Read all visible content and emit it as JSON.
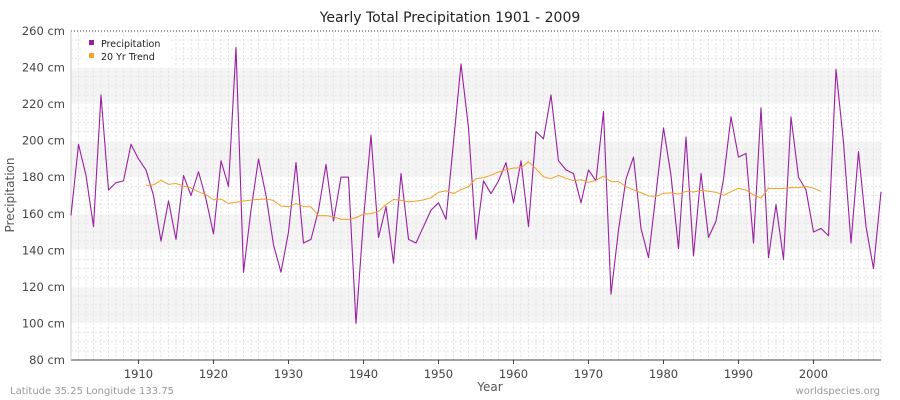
{
  "chart_data": {
    "type": "line",
    "title": "Yearly Total Precipitation 1901 - 2009",
    "xlabel": "Year",
    "ylabel": "Precipitation",
    "x_start": 1901,
    "x_end": 2009,
    "xlim": [
      1901,
      2009
    ],
    "ylim": [
      80,
      260
    ],
    "y_unit": "cm",
    "x_ticks": [
      1910,
      1920,
      1930,
      1940,
      1950,
      1960,
      1970,
      1980,
      1990,
      2000
    ],
    "y_ticks": [
      80,
      100,
      120,
      140,
      160,
      180,
      200,
      220,
      240,
      260
    ],
    "y_tick_labels": [
      "80 cm",
      "100 cm",
      "120 cm",
      "140 cm",
      "160 cm",
      "180 cm",
      "200 cm",
      "220 cm",
      "240 cm",
      "260 cm"
    ],
    "grid": true,
    "legend_position": "top-left",
    "series": [
      {
        "name": "Precipitation",
        "color": "#9b1fa3",
        "values": [
          159,
          198,
          181,
          153,
          225,
          173,
          177,
          178,
          198,
          190,
          184,
          170,
          145,
          167,
          146,
          181,
          170,
          183,
          168,
          149,
          189,
          175,
          251,
          128,
          162,
          190,
          170,
          143,
          128,
          150,
          188,
          144,
          146,
          162,
          187,
          156,
          180,
          180,
          100,
          157,
          203,
          147,
          164,
          133,
          182,
          146,
          144,
          153,
          162,
          166,
          157,
          199,
          242,
          207,
          146,
          178,
          171,
          178,
          188,
          166,
          189,
          153,
          205,
          201,
          225,
          189,
          184,
          182,
          166,
          184,
          178,
          216,
          116,
          151,
          179,
          191,
          152,
          136,
          171,
          207,
          181,
          141,
          202,
          137,
          182,
          147,
          156,
          179,
          213,
          191,
          193,
          144,
          218,
          136,
          165,
          135,
          213,
          180,
          173,
          150,
          152,
          148,
          239,
          199,
          144,
          194,
          153,
          130,
          172
        ]
      },
      {
        "name": "20 Yr Trend",
        "color": "#f4a020",
        "start_year": 1911,
        "values": [
          175.5,
          175.8,
          178.4,
          176.1,
          176.6,
          175.2,
          174.1,
          172.0,
          170.5,
          167.6,
          168.1,
          165.6,
          166.3,
          167.0,
          167.5,
          167.9,
          168.1,
          167.3,
          164.2,
          163.9,
          165.6,
          164.0,
          163.8,
          158.9,
          159.0,
          158.4,
          157.0,
          156.9,
          157.9,
          159.8,
          160.1,
          161.4,
          165.0,
          167.8,
          167.4,
          166.5,
          166.9,
          167.6,
          168.8,
          171.7,
          172.6,
          171.1,
          173.2,
          174.8,
          179.3,
          179.7,
          181.1,
          182.8,
          184.1,
          185.0,
          185.2,
          188.5,
          184.6,
          180.2,
          179.2,
          181.0,
          179.4,
          178.1,
          178.6,
          177.2,
          178.3,
          180.6,
          177.6,
          177.6,
          174.9,
          173.1,
          171.5,
          169.8,
          169.5,
          171.2,
          171.4,
          170.8,
          172.3,
          171.9,
          172.8,
          172.3,
          171.8,
          170.1,
          172.1,
          173.9,
          173.0,
          170.4,
          168.6,
          174.0,
          173.8,
          173.8,
          174.4,
          174.3,
          175.0,
          174.0,
          172.3
        ]
      }
    ],
    "footer_left": "Latitude 35.25 Longitude 133.75",
    "footer_right": "worldspecies.org"
  }
}
